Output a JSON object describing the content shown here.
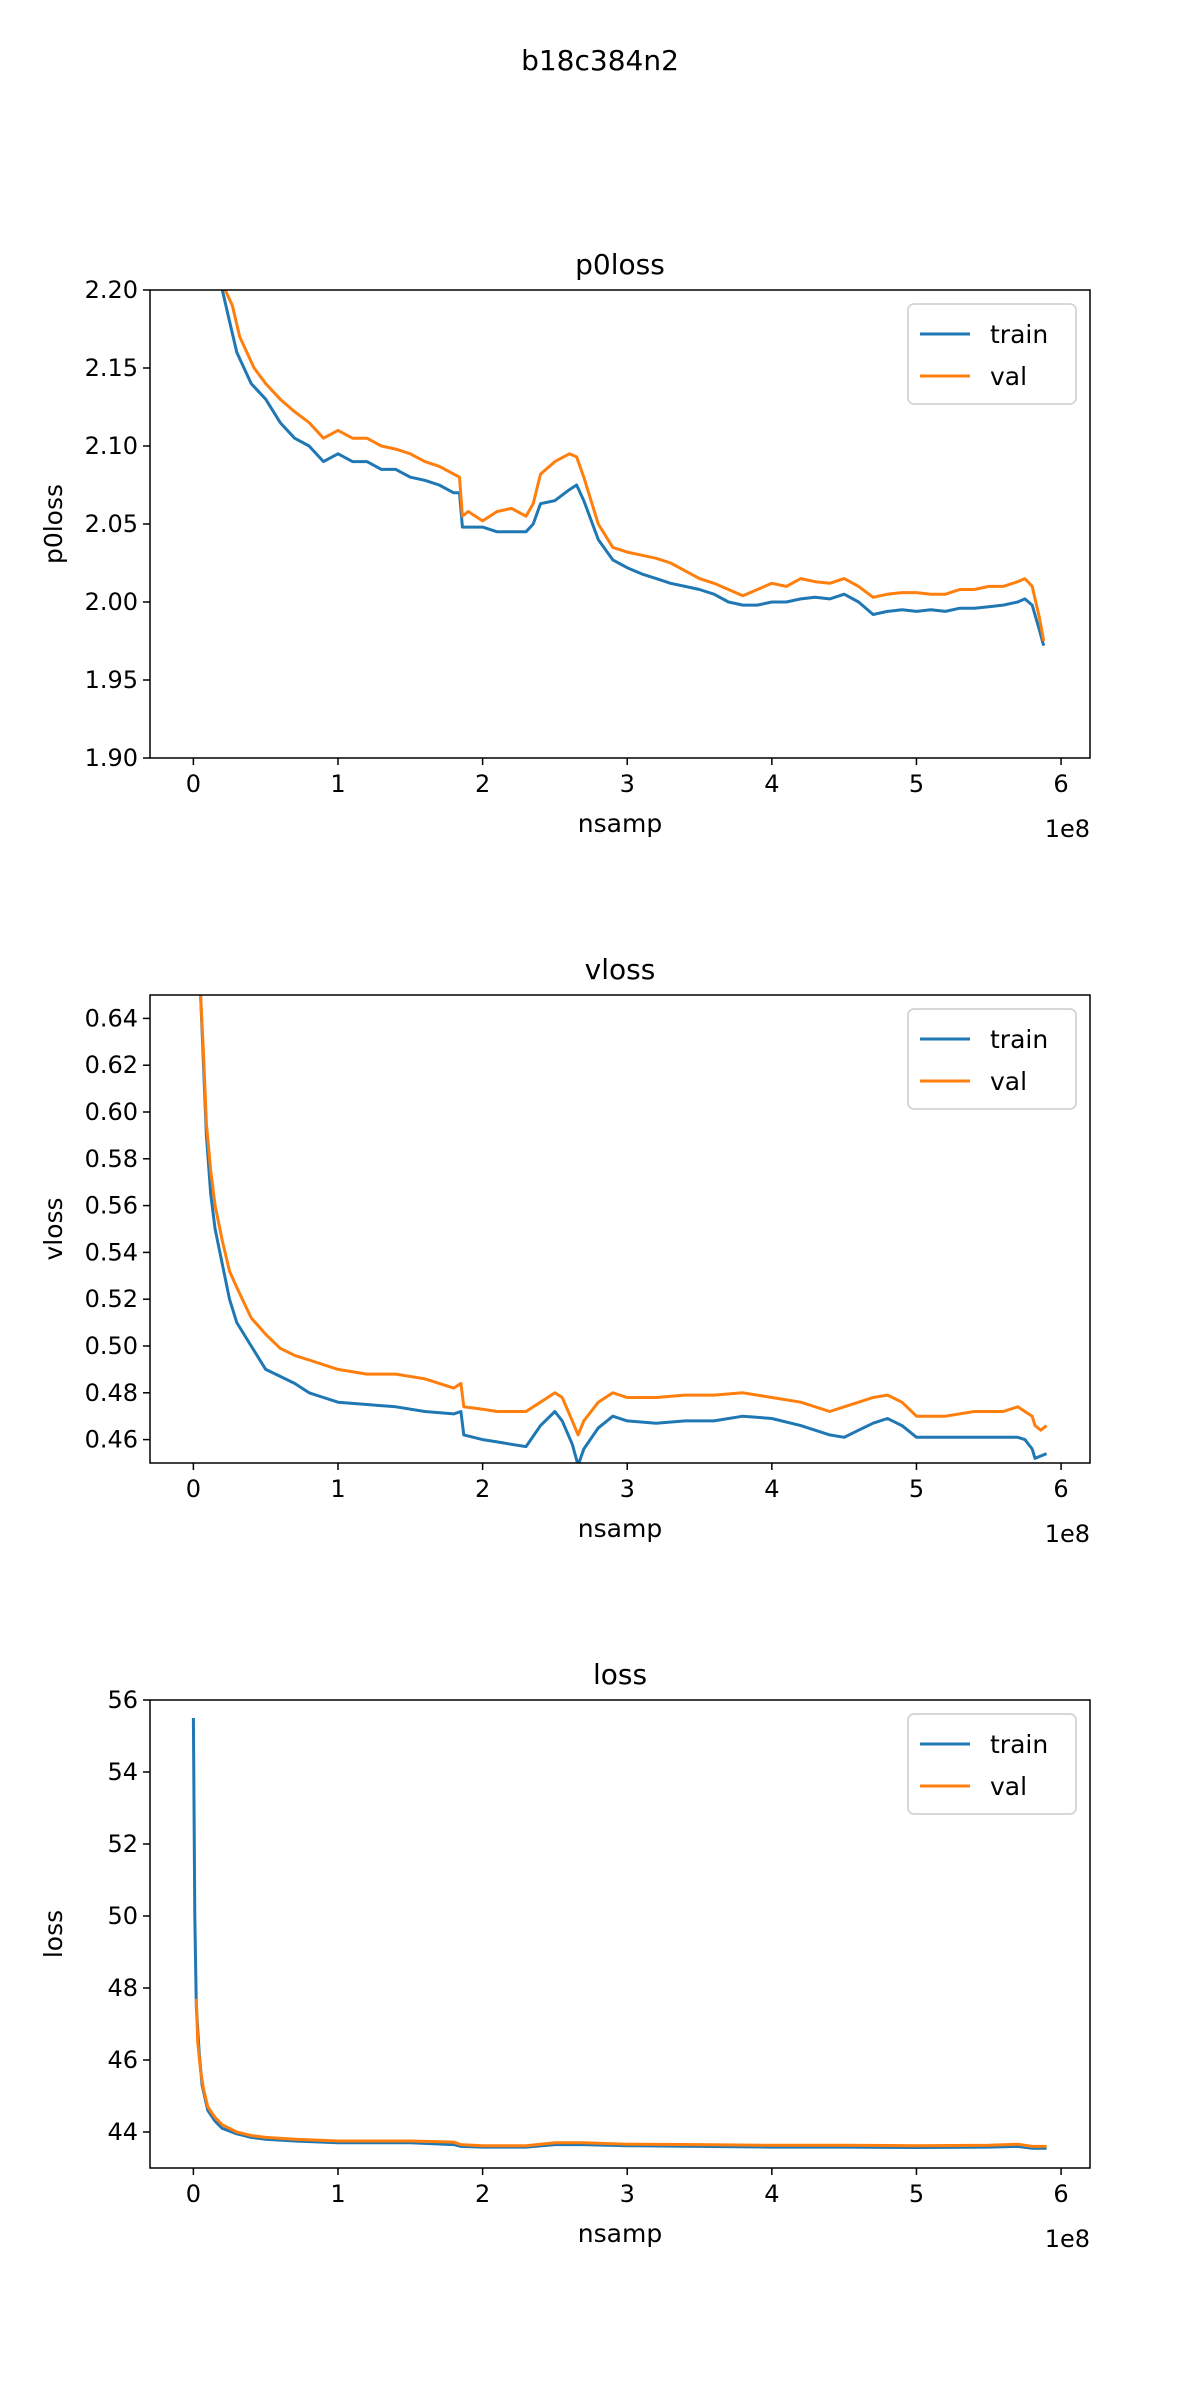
{
  "figure": {
    "suptitle": "b18c384n2"
  },
  "chart_data": [
    {
      "type": "line",
      "title": "p0loss",
      "xlabel": "nsamp",
      "ylabel": "p0loss",
      "x_offset_label": "1e8",
      "xlim": [
        -0.3,
        6.2
      ],
      "ylim": [
        1.9,
        2.2
      ],
      "xticks": [
        0,
        1,
        2,
        3,
        4,
        5,
        6
      ],
      "xtick_labels": [
        "0",
        "1",
        "2",
        "3",
        "4",
        "5",
        "6"
      ],
      "yticks": [
        1.9,
        1.95,
        2.0,
        2.05,
        2.1,
        2.15,
        2.2
      ],
      "ytick_labels": [
        "1.90",
        "1.95",
        "2.00",
        "2.05",
        "2.10",
        "2.15",
        "2.20"
      ],
      "legend_position": "top-right",
      "grid": false,
      "series": [
        {
          "name": "train",
          "color": "#1f77b4",
          "x": [
            0.2,
            0.25,
            0.3,
            0.35,
            0.4,
            0.5,
            0.6,
            0.7,
            0.8,
            0.9,
            1.0,
            1.1,
            1.2,
            1.3,
            1.4,
            1.5,
            1.6,
            1.7,
            1.8,
            1.84,
            1.86,
            1.9,
            2.0,
            2.1,
            2.2,
            2.3,
            2.35,
            2.4,
            2.5,
            2.6,
            2.65,
            2.7,
            2.8,
            2.9,
            3.0,
            3.1,
            3.2,
            3.3,
            3.4,
            3.5,
            3.6,
            3.7,
            3.8,
            3.9,
            4.0,
            4.1,
            4.2,
            4.3,
            4.4,
            4.5,
            4.6,
            4.7,
            4.8,
            4.9,
            5.0,
            5.1,
            5.2,
            5.3,
            5.4,
            5.5,
            5.6,
            5.7,
            5.75,
            5.8,
            5.85,
            5.88
          ],
          "y": [
            2.2,
            2.18,
            2.16,
            2.15,
            2.14,
            2.13,
            2.115,
            2.105,
            2.1,
            2.09,
            2.095,
            2.09,
            2.09,
            2.085,
            2.085,
            2.08,
            2.078,
            2.075,
            2.07,
            2.07,
            2.048,
            2.048,
            2.048,
            2.045,
            2.045,
            2.045,
            2.05,
            2.063,
            2.065,
            2.072,
            2.075,
            2.065,
            2.04,
            2.027,
            2.022,
            2.018,
            2.015,
            2.012,
            2.01,
            2.008,
            2.005,
            2.0,
            1.998,
            1.998,
            2.0,
            2.0,
            2.002,
            2.003,
            2.002,
            2.005,
            2.0,
            1.992,
            1.994,
            1.995,
            1.994,
            1.995,
            1.994,
            1.996,
            1.996,
            1.997,
            1.998,
            2.0,
            2.002,
            1.998,
            1.982,
            1.972
          ]
        },
        {
          "name": "val",
          "color": "#ff7f0e",
          "x": [
            0.22,
            0.27,
            0.32,
            0.37,
            0.42,
            0.5,
            0.6,
            0.7,
            0.8,
            0.9,
            1.0,
            1.1,
            1.2,
            1.3,
            1.4,
            1.5,
            1.6,
            1.7,
            1.8,
            1.84,
            1.86,
            1.9,
            2.0,
            2.1,
            2.2,
            2.3,
            2.35,
            2.4,
            2.5,
            2.6,
            2.65,
            2.7,
            2.8,
            2.9,
            3.0,
            3.1,
            3.2,
            3.3,
            3.4,
            3.5,
            3.6,
            3.7,
            3.8,
            3.9,
            4.0,
            4.1,
            4.2,
            4.3,
            4.4,
            4.5,
            4.6,
            4.7,
            4.8,
            4.9,
            5.0,
            5.1,
            5.2,
            5.3,
            5.4,
            5.5,
            5.6,
            5.7,
            5.75,
            5.8,
            5.85,
            5.88
          ],
          "y": [
            2.2,
            2.19,
            2.17,
            2.16,
            2.15,
            2.14,
            2.13,
            2.122,
            2.115,
            2.105,
            2.11,
            2.105,
            2.105,
            2.1,
            2.098,
            2.095,
            2.09,
            2.087,
            2.082,
            2.08,
            2.055,
            2.058,
            2.052,
            2.058,
            2.06,
            2.055,
            2.063,
            2.082,
            2.09,
            2.095,
            2.093,
            2.08,
            2.05,
            2.035,
            2.032,
            2.03,
            2.028,
            2.025,
            2.02,
            2.015,
            2.012,
            2.008,
            2.004,
            2.008,
            2.012,
            2.01,
            2.015,
            2.013,
            2.012,
            2.015,
            2.01,
            2.003,
            2.005,
            2.006,
            2.006,
            2.005,
            2.005,
            2.008,
            2.008,
            2.01,
            2.01,
            2.013,
            2.015,
            2.01,
            1.99,
            1.975
          ]
        }
      ]
    },
    {
      "type": "line",
      "title": "vloss",
      "xlabel": "nsamp",
      "ylabel": "vloss",
      "x_offset_label": "1e8",
      "xlim": [
        -0.3,
        6.2
      ],
      "ylim": [
        0.45,
        0.65
      ],
      "xticks": [
        0,
        1,
        2,
        3,
        4,
        5,
        6
      ],
      "xtick_labels": [
        "0",
        "1",
        "2",
        "3",
        "4",
        "5",
        "6"
      ],
      "yticks": [
        0.46,
        0.48,
        0.5,
        0.52,
        0.54,
        0.56,
        0.58,
        0.6,
        0.62,
        0.64
      ],
      "ytick_labels": [
        "0.46",
        "0.48",
        "0.50",
        "0.52",
        "0.54",
        "0.56",
        "0.58",
        "0.60",
        "0.62",
        "0.64"
      ],
      "legend_position": "top-right",
      "grid": false,
      "series": [
        {
          "name": "train",
          "color": "#1f77b4",
          "x": [
            0.05,
            0.07,
            0.09,
            0.12,
            0.15,
            0.2,
            0.25,
            0.3,
            0.4,
            0.5,
            0.6,
            0.7,
            0.8,
            0.9,
            1.0,
            1.2,
            1.4,
            1.6,
            1.8,
            1.85,
            1.87,
            2.0,
            2.1,
            2.2,
            2.3,
            2.4,
            2.5,
            2.55,
            2.62,
            2.66,
            2.7,
            2.8,
            2.9,
            3.0,
            3.2,
            3.4,
            3.6,
            3.8,
            4.0,
            4.2,
            4.4,
            4.5,
            4.6,
            4.7,
            4.8,
            4.9,
            5.0,
            5.2,
            5.4,
            5.6,
            5.7,
            5.75,
            5.8,
            5.82,
            5.86,
            5.9
          ],
          "y": [
            0.65,
            0.62,
            0.59,
            0.565,
            0.55,
            0.535,
            0.52,
            0.51,
            0.5,
            0.49,
            0.487,
            0.484,
            0.48,
            0.478,
            0.476,
            0.475,
            0.474,
            0.472,
            0.471,
            0.472,
            0.462,
            0.46,
            0.459,
            0.458,
            0.457,
            0.466,
            0.472,
            0.468,
            0.458,
            0.449,
            0.456,
            0.465,
            0.47,
            0.468,
            0.467,
            0.468,
            0.468,
            0.47,
            0.469,
            0.466,
            0.462,
            0.461,
            0.464,
            0.467,
            0.469,
            0.466,
            0.461,
            0.461,
            0.461,
            0.461,
            0.461,
            0.46,
            0.456,
            0.452,
            0.453,
            0.454
          ]
        },
        {
          "name": "val",
          "color": "#ff7f0e",
          "x": [
            0.05,
            0.07,
            0.09,
            0.12,
            0.15,
            0.2,
            0.25,
            0.3,
            0.4,
            0.5,
            0.6,
            0.7,
            0.8,
            0.9,
            1.0,
            1.2,
            1.4,
            1.6,
            1.8,
            1.85,
            1.87,
            2.0,
            2.1,
            2.2,
            2.3,
            2.4,
            2.5,
            2.55,
            2.62,
            2.66,
            2.7,
            2.8,
            2.9,
            3.0,
            3.2,
            3.4,
            3.6,
            3.8,
            4.0,
            4.2,
            4.4,
            4.5,
            4.6,
            4.7,
            4.8,
            4.9,
            5.0,
            5.2,
            5.4,
            5.6,
            5.7,
            5.75,
            5.8,
            5.82,
            5.86,
            5.9
          ],
          "y": [
            0.65,
            0.625,
            0.595,
            0.575,
            0.56,
            0.545,
            0.532,
            0.525,
            0.512,
            0.505,
            0.499,
            0.496,
            0.494,
            0.492,
            0.49,
            0.488,
            0.488,
            0.486,
            0.482,
            0.484,
            0.474,
            0.473,
            0.472,
            0.472,
            0.472,
            0.476,
            0.48,
            0.478,
            0.468,
            0.462,
            0.468,
            0.476,
            0.48,
            0.478,
            0.478,
            0.479,
            0.479,
            0.48,
            0.478,
            0.476,
            0.472,
            0.474,
            0.476,
            0.478,
            0.479,
            0.476,
            0.47,
            0.47,
            0.472,
            0.472,
            0.474,
            0.472,
            0.47,
            0.466,
            0.464,
            0.466
          ]
        }
      ]
    },
    {
      "type": "line",
      "title": "loss",
      "xlabel": "nsamp",
      "ylabel": "loss",
      "x_offset_label": "1e8",
      "xlim": [
        -0.3,
        6.2
      ],
      "ylim": [
        43.0,
        56.0
      ],
      "xticks": [
        0,
        1,
        2,
        3,
        4,
        5,
        6
      ],
      "xtick_labels": [
        "0",
        "1",
        "2",
        "3",
        "4",
        "5",
        "6"
      ],
      "yticks": [
        44,
        46,
        48,
        50,
        52,
        54,
        56
      ],
      "ytick_labels": [
        "44",
        "46",
        "48",
        "50",
        "52",
        "54",
        "56"
      ],
      "legend_position": "top-right",
      "grid": false,
      "series": [
        {
          "name": "train",
          "color": "#1f77b4",
          "x": [
            0.0,
            0.01,
            0.02,
            0.04,
            0.06,
            0.1,
            0.15,
            0.2,
            0.3,
            0.4,
            0.5,
            0.7,
            1.0,
            1.5,
            1.8,
            1.85,
            2.0,
            2.3,
            2.5,
            2.7,
            3.0,
            3.5,
            4.0,
            4.5,
            5.0,
            5.5,
            5.7,
            5.8,
            5.9
          ],
          "y": [
            55.5,
            50.0,
            47.5,
            46.2,
            45.3,
            44.6,
            44.3,
            44.1,
            43.95,
            43.85,
            43.8,
            43.75,
            43.7,
            43.7,
            43.65,
            43.6,
            43.58,
            43.58,
            43.65,
            43.65,
            43.62,
            43.6,
            43.58,
            43.58,
            43.57,
            43.58,
            43.6,
            43.55,
            43.55
          ]
        },
        {
          "name": "val",
          "color": "#ff7f0e",
          "x": [
            0.02,
            0.03,
            0.05,
            0.07,
            0.1,
            0.15,
            0.2,
            0.3,
            0.4,
            0.5,
            0.7,
            1.0,
            1.5,
            1.8,
            1.85,
            2.0,
            2.3,
            2.5,
            2.7,
            3.0,
            3.5,
            4.0,
            4.5,
            5.0,
            5.5,
            5.7,
            5.8,
            5.9
          ],
          "y": [
            47.7,
            46.5,
            45.7,
            45.2,
            44.7,
            44.4,
            44.2,
            44.0,
            43.9,
            43.85,
            43.8,
            43.75,
            43.75,
            43.72,
            43.65,
            43.62,
            43.62,
            43.7,
            43.7,
            43.66,
            43.65,
            43.63,
            43.63,
            43.62,
            43.63,
            43.66,
            43.6,
            43.6
          ]
        }
      ]
    }
  ]
}
